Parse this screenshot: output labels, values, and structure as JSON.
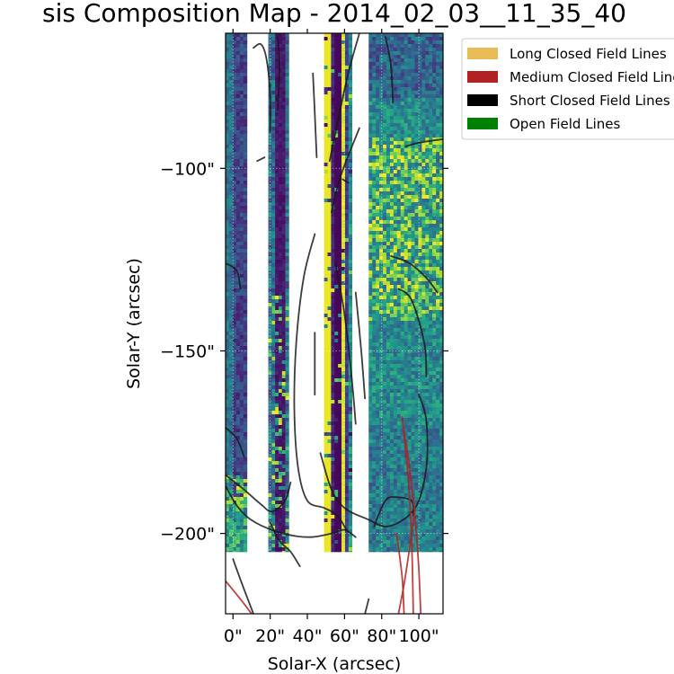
{
  "chart_data": {
    "type": "heatmap",
    "title": "sis Composition Map - 2014_02_03__11_35_40",
    "xlabel": "Solar-X (arcsec)",
    "ylabel": "Solar-Y (arcsec)",
    "xlim": [
      -4,
      113
    ],
    "ylim": [
      -222,
      -63
    ],
    "xticks": [
      0,
      20,
      40,
      60,
      80,
      100
    ],
    "xtick_labels": [
      "0\"",
      "20\"",
      "40\"",
      "60\"",
      "80\"",
      "100\""
    ],
    "yticks": [
      -100,
      -150,
      -200
    ],
    "ytick_labels": [
      "−100\"",
      "−150\"",
      "−200\""
    ],
    "grid": true,
    "colormap": "viridis",
    "legend": {
      "placement": "upper right, outside axes",
      "entries": [
        {
          "label": "Long Closed Field Lines",
          "color": "#e8bd57"
        },
        {
          "label": "Medium Closed Field Lines",
          "color": "#b22222"
        },
        {
          "label": "Short Closed Field Lines",
          "color": "#000000"
        },
        {
          "label": "Open Field Lines",
          "color": "#008000"
        }
      ]
    },
    "data_strips": [
      {
        "x": [
          -4,
          7.5
        ],
        "y": [
          -205,
          -63
        ],
        "profile": "dark"
      },
      {
        "x": [
          19,
          30
        ],
        "y": [
          -205,
          -63
        ],
        "profile": "stripe"
      },
      {
        "x": [
          49,
          64
        ],
        "y": [
          -205,
          -63
        ],
        "profile": "slit"
      },
      {
        "x": [
          73,
          113
        ],
        "y": [
          -205,
          -63
        ],
        "profile": "mixed"
      }
    ],
    "field_lines": [
      {
        "category": "short",
        "points": [
          [
            11,
            -67
          ],
          [
            15,
            -66
          ],
          [
            18,
            -70
          ],
          [
            20,
            -80
          ],
          [
            20,
            -90
          ]
        ]
      },
      {
        "category": "short",
        "points": [
          [
            24,
            -64
          ],
          [
            25,
            -72
          ],
          [
            24,
            -84
          ]
        ]
      },
      {
        "category": "short",
        "points": [
          [
            13,
            -98
          ],
          [
            17,
            -97
          ]
        ]
      },
      {
        "category": "short",
        "points": [
          [
            43,
            -74
          ],
          [
            44,
            -85
          ],
          [
            45,
            -97
          ]
        ]
      },
      {
        "category": "short",
        "points": [
          [
            52,
            -98
          ],
          [
            56,
            -88
          ],
          [
            62,
            -74
          ],
          [
            68,
            -63
          ]
        ]
      },
      {
        "category": "short",
        "points": [
          [
            53,
            -112
          ],
          [
            58,
            -102
          ],
          [
            68,
            -89
          ]
        ]
      },
      {
        "category": "short",
        "points": [
          [
            59,
            -103
          ],
          [
            62,
            -104
          ]
        ]
      },
      {
        "category": "short",
        "points": [
          [
            82,
            -64
          ],
          [
            85,
            -72
          ],
          [
            86,
            -82
          ]
        ]
      },
      {
        "category": "short",
        "points": [
          [
            93,
            -94
          ],
          [
            100,
            -93
          ],
          [
            113,
            -92
          ]
        ]
      },
      {
        "category": "short",
        "points": [
          [
            85,
            -124
          ],
          [
            95,
            -126
          ],
          [
            104,
            -130
          ],
          [
            110,
            -134
          ]
        ]
      },
      {
        "category": "short",
        "points": [
          [
            89,
            -133
          ],
          [
            96,
            -136
          ],
          [
            103,
            -148
          ],
          [
            104,
            -157
          ]
        ]
      },
      {
        "category": "short",
        "points": [
          [
            -4,
            -126
          ],
          [
            2,
            -128
          ],
          [
            4,
            -133
          ]
        ]
      },
      {
        "category": "short",
        "points": [
          [
            44,
            -118
          ],
          [
            38,
            -130
          ],
          [
            34,
            -148
          ],
          [
            33,
            -166
          ],
          [
            35,
            -182
          ],
          [
            40,
            -191
          ],
          [
            49,
            -193
          ],
          [
            56,
            -195
          ],
          [
            61,
            -199
          ]
        ]
      },
      {
        "category": "short",
        "points": [
          [
            44,
            -145
          ],
          [
            44,
            -162
          ]
        ]
      },
      {
        "category": "short",
        "points": [
          [
            55,
            -126
          ],
          [
            60,
            -140
          ],
          [
            64,
            -158
          ],
          [
            66,
            -170
          ]
        ]
      },
      {
        "category": "short",
        "points": [
          [
            66,
            -134
          ],
          [
            69,
            -150
          ],
          [
            71,
            -163
          ]
        ]
      },
      {
        "category": "short",
        "points": [
          [
            47,
            -178
          ],
          [
            53,
            -188
          ],
          [
            60,
            -193
          ],
          [
            72,
            -196
          ],
          [
            84,
            -198
          ],
          [
            98,
            -193
          ],
          [
            104,
            -182
          ],
          [
            104,
            -169
          ],
          [
            100,
            -162
          ]
        ]
      },
      {
        "category": "short",
        "points": [
          [
            -4,
            -171
          ],
          [
            2,
            -174
          ],
          [
            6,
            -179
          ]
        ]
      },
      {
        "category": "short",
        "points": [
          [
            -4,
            -184
          ],
          [
            6,
            -188
          ],
          [
            15,
            -192
          ],
          [
            21,
            -194
          ],
          [
            28,
            -191
          ],
          [
            31,
            -186
          ]
        ]
      },
      {
        "category": "short",
        "points": [
          [
            -4,
            -187
          ],
          [
            3,
            -193
          ],
          [
            12,
            -197
          ],
          [
            27,
            -200
          ],
          [
            41,
            -201
          ],
          [
            53,
            -200
          ],
          [
            60,
            -199
          ],
          [
            66,
            -201
          ]
        ]
      },
      {
        "category": "short",
        "points": [
          [
            20,
            -197
          ],
          [
            25,
            -202
          ],
          [
            31,
            -205
          ],
          [
            36,
            -209
          ]
        ]
      },
      {
        "category": "short",
        "points": [
          [
            0,
            -207
          ],
          [
            5,
            -214
          ],
          [
            11,
            -222
          ]
        ]
      },
      {
        "category": "short",
        "points": [
          [
            71,
            -222
          ],
          [
            73,
            -218
          ]
        ]
      },
      {
        "category": "short",
        "points": [
          [
            76,
            -198
          ],
          [
            79,
            -194
          ],
          [
            82,
            -191
          ],
          [
            86,
            -190
          ],
          [
            96,
            -191
          ],
          [
            97,
            -195
          ]
        ]
      },
      {
        "category": "medium",
        "points": [
          [
            -4,
            -213
          ],
          [
            4,
            -218
          ],
          [
            10,
            -222
          ]
        ]
      },
      {
        "category": "medium",
        "points": [
          [
            88,
            -200
          ],
          [
            91,
            -212
          ],
          [
            92,
            -222
          ]
        ]
      },
      {
        "category": "medium",
        "points": [
          [
            92,
            -172
          ],
          [
            95,
            -182
          ],
          [
            98,
            -196
          ],
          [
            100,
            -210
          ],
          [
            101,
            -222
          ]
        ]
      },
      {
        "category": "medium",
        "points": [
          [
            91,
            -168
          ],
          [
            94,
            -183
          ],
          [
            96,
            -200
          ],
          [
            97,
            -222
          ]
        ]
      },
      {
        "category": "medium",
        "points": [
          [
            98,
            -193
          ],
          [
            95,
            -204
          ],
          [
            92,
            -214
          ],
          [
            89,
            -222
          ]
        ]
      }
    ]
  }
}
